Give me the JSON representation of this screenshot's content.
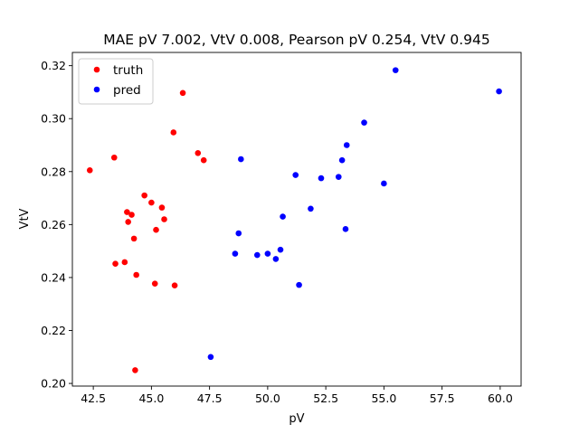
{
  "chart_data": {
    "type": "scatter",
    "title": "MAE pV 7.002, VtV 0.008, Pearson pV 0.254, VtV 0.945",
    "xlabel": "pV",
    "ylabel": "VtV",
    "xlim": [
      41.6,
      60.9
    ],
    "ylim": [
      0.199,
      0.325
    ],
    "xticks": [
      42.5,
      45.0,
      47.5,
      50.0,
      52.5,
      55.0,
      57.5,
      60.0
    ],
    "xtick_labels": [
      "42.5",
      "45.0",
      "47.5",
      "50.0",
      "52.5",
      "55.0",
      "57.5",
      "60.0"
    ],
    "yticks": [
      0.2,
      0.22,
      0.24,
      0.26,
      0.28,
      0.3,
      0.32
    ],
    "ytick_labels": [
      "0.20",
      "0.22",
      "0.24",
      "0.26",
      "0.28",
      "0.30",
      "0.32"
    ],
    "grid": false,
    "legend_position": "top-left",
    "series": [
      {
        "name": "truth",
        "color": "#ff0000",
        "points": [
          [
            42.35,
            0.2805
          ],
          [
            43.4,
            0.2853
          ],
          [
            43.45,
            0.2452
          ],
          [
            43.85,
            0.2458
          ],
          [
            43.95,
            0.2647
          ],
          [
            44.0,
            0.261
          ],
          [
            44.15,
            0.2637
          ],
          [
            44.25,
            0.2547
          ],
          [
            44.3,
            0.205
          ],
          [
            44.35,
            0.241
          ],
          [
            44.7,
            0.271
          ],
          [
            45.0,
            0.2683
          ],
          [
            45.15,
            0.2377
          ],
          [
            45.2,
            0.258
          ],
          [
            45.45,
            0.2664
          ],
          [
            45.55,
            0.262
          ],
          [
            45.95,
            0.2948
          ],
          [
            46.0,
            0.237
          ],
          [
            46.35,
            0.3097
          ],
          [
            47.0,
            0.287
          ],
          [
            47.25,
            0.2843
          ]
        ]
      },
      {
        "name": "pred",
        "color": "#0000ff",
        "points": [
          [
            47.55,
            0.21
          ],
          [
            48.6,
            0.249
          ],
          [
            48.75,
            0.2567
          ],
          [
            48.85,
            0.2847
          ],
          [
            49.55,
            0.2485
          ],
          [
            50.0,
            0.249
          ],
          [
            50.35,
            0.247
          ],
          [
            50.55,
            0.2505
          ],
          [
            50.65,
            0.263
          ],
          [
            51.2,
            0.2787
          ],
          [
            51.35,
            0.2372
          ],
          [
            51.85,
            0.266
          ],
          [
            52.3,
            0.2775
          ],
          [
            53.05,
            0.278
          ],
          [
            53.2,
            0.2843
          ],
          [
            53.35,
            0.2583
          ],
          [
            53.4,
            0.29
          ],
          [
            54.15,
            0.2985
          ],
          [
            55.0,
            0.2755
          ],
          [
            55.5,
            0.3183
          ],
          [
            59.95,
            0.3103
          ]
        ]
      }
    ]
  }
}
